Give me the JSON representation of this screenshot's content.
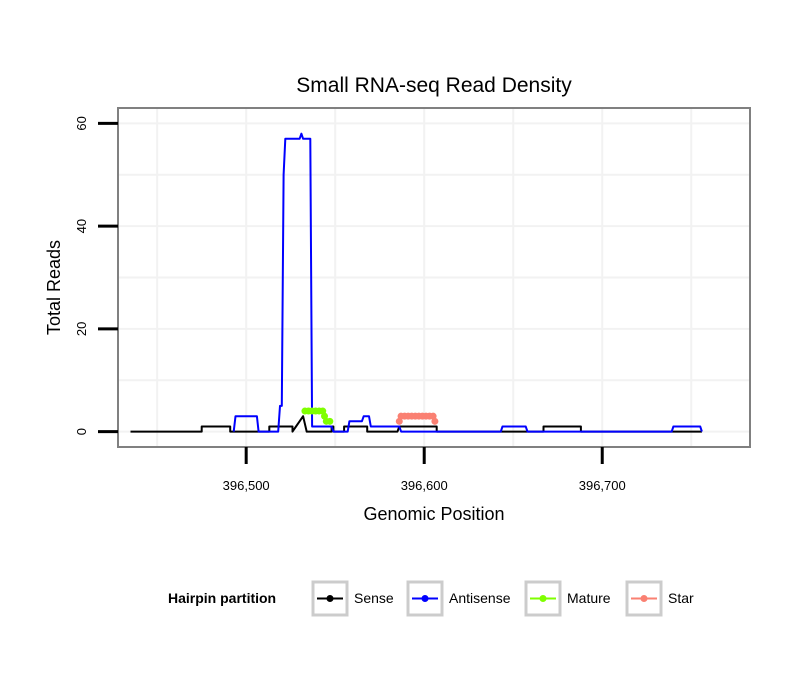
{
  "chart_data": {
    "type": "line",
    "title": "Small RNA-seq Read Density",
    "xlabel": "Genomic Position",
    "ylabel": "Total Reads",
    "xlim": [
      396428,
      396783
    ],
    "ylim": [
      -3,
      63
    ],
    "x_ticks": [
      396500,
      396600,
      396700
    ],
    "x_tick_labels": [
      "396,500",
      "396,600",
      "396,700"
    ],
    "y_ticks": [
      0,
      20,
      40,
      60
    ],
    "y_tick_labels": [
      "0",
      "20",
      "40",
      "60"
    ],
    "grid": true,
    "legend": {
      "title": "Hairpin partition",
      "placement": "bottom",
      "entries": [
        {
          "name": "Sense",
          "color": "#000000"
        },
        {
          "name": "Antisense",
          "color": "#0000ff"
        },
        {
          "name": "Mature",
          "color": "#7fff00"
        },
        {
          "name": "Star",
          "color": "#fa8072"
        }
      ]
    },
    "series": [
      {
        "name": "Sense",
        "color": "#000000",
        "points": [
          [
            396435,
            0
          ],
          [
            396475,
            0
          ],
          [
            396475,
            1
          ],
          [
            396491,
            1
          ],
          [
            396491,
            0
          ],
          [
            396513,
            0
          ],
          [
            396513,
            1
          ],
          [
            396526,
            1
          ],
          [
            396526,
            0
          ],
          [
            396528,
            1
          ],
          [
            396530,
            2
          ],
          [
            396532,
            3
          ],
          [
            396534,
            0
          ],
          [
            396548,
            0
          ],
          [
            396548,
            1
          ],
          [
            396549,
            1
          ],
          [
            396549,
            0
          ],
          [
            396555,
            0
          ],
          [
            396555,
            1
          ],
          [
            396568,
            1
          ],
          [
            396568,
            0
          ],
          [
            396585,
            0
          ],
          [
            396586,
            1
          ],
          [
            396607,
            1
          ],
          [
            396607,
            0
          ],
          [
            396667,
            0
          ],
          [
            396667,
            1
          ],
          [
            396688,
            1
          ],
          [
            396688,
            0
          ],
          [
            396756,
            0
          ]
        ]
      },
      {
        "name": "Antisense",
        "color": "#0000ff",
        "points": [
          [
            396493,
            0
          ],
          [
            396494,
            3
          ],
          [
            396506,
            3
          ],
          [
            396507,
            0
          ],
          [
            396518,
            0
          ],
          [
            396519,
            5
          ],
          [
            396520,
            5
          ],
          [
            396521,
            50
          ],
          [
            396522,
            57
          ],
          [
            396524,
            57
          ],
          [
            396530,
            57
          ],
          [
            396531,
            58
          ],
          [
            396532,
            57
          ],
          [
            396536,
            57
          ],
          [
            396537,
            1
          ],
          [
            396548,
            1
          ],
          [
            396549,
            0
          ],
          [
            396557,
            0
          ],
          [
            396558,
            2
          ],
          [
            396565,
            2
          ],
          [
            396566,
            3
          ],
          [
            396569,
            3
          ],
          [
            396570,
            1
          ],
          [
            396586,
            1
          ],
          [
            396587,
            0
          ],
          [
            396643,
            0
          ],
          [
            396644,
            1
          ],
          [
            396657,
            1
          ],
          [
            396658,
            0
          ],
          [
            396739,
            0
          ],
          [
            396740,
            1
          ],
          [
            396755,
            1
          ],
          [
            396756,
            0
          ]
        ]
      },
      {
        "name": "Mature",
        "color": "#7fff00",
        "points": [
          [
            396533,
            4
          ],
          [
            396535,
            4
          ],
          [
            396537,
            4
          ],
          [
            396539,
            4
          ],
          [
            396541,
            4
          ],
          [
            396543,
            4
          ],
          [
            396544,
            3
          ],
          [
            396545,
            2
          ],
          [
            396547,
            2
          ]
        ]
      },
      {
        "name": "Star",
        "color": "#fa8072",
        "points": [
          [
            396586,
            2
          ],
          [
            396587,
            3
          ],
          [
            396589,
            3
          ],
          [
            396591,
            3
          ],
          [
            396593,
            3
          ],
          [
            396595,
            3
          ],
          [
            396597,
            3
          ],
          [
            396599,
            3
          ],
          [
            396601,
            3
          ],
          [
            396603,
            3
          ],
          [
            396605,
            3
          ],
          [
            396606,
            2
          ]
        ]
      }
    ]
  }
}
